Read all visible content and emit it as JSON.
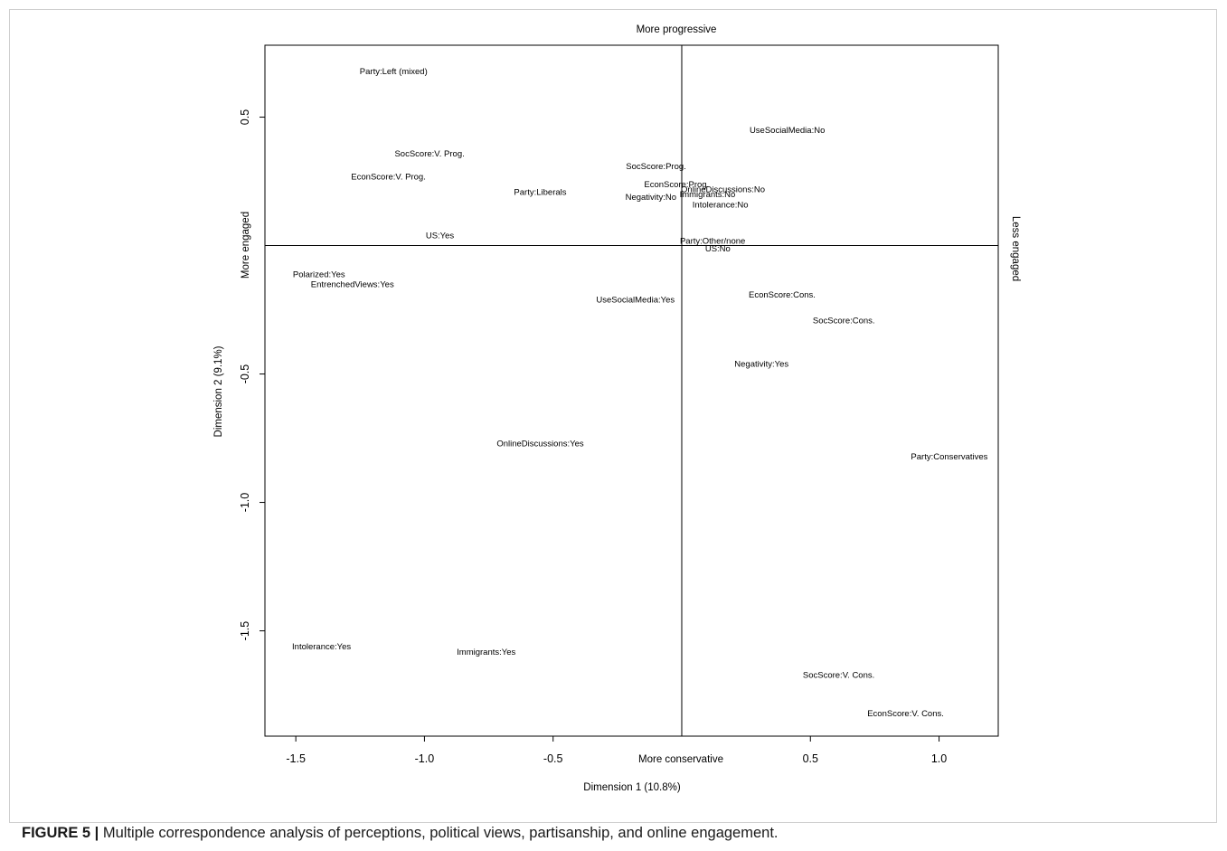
{
  "caption": {
    "label": "FIGURE 5 |",
    "text": "Multiple correspondence analysis of perceptions, political views, partisanship, and online engagement."
  },
  "chart_data": {
    "type": "scatter",
    "xlabel": "Dimension 1 (10.8%)",
    "ylabel": "Dimension 2 (9.1%)",
    "xlim": [
      -1.62,
      1.23
    ],
    "ylim": [
      -1.91,
      0.78
    ],
    "x_ticks": [
      {
        "value": -1.5,
        "label": "-1.5"
      },
      {
        "value": -1.0,
        "label": "-1.0"
      },
      {
        "value": -0.5,
        "label": "-0.5"
      },
      {
        "value": 0.5,
        "label": "0.5"
      },
      {
        "value": 1.0,
        "label": "1.0"
      }
    ],
    "y_ticks": [
      {
        "value": 0.5,
        "label": "0.5"
      },
      {
        "value": -0.5,
        "label": "-0.5"
      },
      {
        "value": -1.0,
        "label": "-1.0"
      },
      {
        "value": -1.5,
        "label": "-1.5"
      }
    ],
    "reference_lines": {
      "x": 0,
      "y": 0
    },
    "annotations": {
      "top": "More progressive",
      "bottom": "More conservative",
      "left": "More engaged",
      "right": "Less engaged"
    },
    "points": [
      {
        "label": "Party:Left (mixed)",
        "x": -1.12,
        "y": 0.68
      },
      {
        "label": "UseSocialMedia:No",
        "x": 0.41,
        "y": 0.45
      },
      {
        "label": "SocScore:V. Prog.",
        "x": -0.98,
        "y": 0.36
      },
      {
        "label": "SocScore:Prog.",
        "x": -0.1,
        "y": 0.31
      },
      {
        "label": "EconScore:V. Prog.",
        "x": -1.14,
        "y": 0.27
      },
      {
        "label": "EconScore:Prog.",
        "x": -0.02,
        "y": 0.24
      },
      {
        "label": "OnlineDiscussions:No",
        "x": 0.16,
        "y": 0.22
      },
      {
        "label": "Party:Liberals",
        "x": -0.55,
        "y": 0.21
      },
      {
        "label": "Immigrants:No",
        "x": 0.1,
        "y": 0.2
      },
      {
        "label": "Negativity:No",
        "x": -0.12,
        "y": 0.19
      },
      {
        "label": "Intolerance:No",
        "x": 0.15,
        "y": 0.16
      },
      {
        "label": "US:Yes",
        "x": -0.94,
        "y": 0.04
      },
      {
        "label": "Party:Other/none",
        "x": 0.12,
        "y": 0.02
      },
      {
        "label": "US:No",
        "x": 0.14,
        "y": -0.01
      },
      {
        "label": "Polarized:Yes",
        "x": -1.41,
        "y": -0.11
      },
      {
        "label": "EntrenchedViews:Yes",
        "x": -1.28,
        "y": -0.15
      },
      {
        "label": "UseSocialMedia:Yes",
        "x": -0.18,
        "y": -0.21
      },
      {
        "label": "EconScore:Cons.",
        "x": 0.39,
        "y": -0.19
      },
      {
        "label": "SocScore:Cons.",
        "x": 0.63,
        "y": -0.29
      },
      {
        "label": "Negativity:Yes",
        "x": 0.31,
        "y": -0.46
      },
      {
        "label": "OnlineDiscussions:Yes",
        "x": -0.55,
        "y": -0.77
      },
      {
        "label": "Party:Conservatives",
        "x": 1.04,
        "y": -0.82
      },
      {
        "label": "Intolerance:Yes",
        "x": -1.4,
        "y": -1.56
      },
      {
        "label": "Immigrants:Yes",
        "x": -0.76,
        "y": -1.58
      },
      {
        "label": "SocScore:V. Cons.",
        "x": 0.61,
        "y": -1.67
      },
      {
        "label": "EconScore:V. Cons.",
        "x": 0.87,
        "y": -1.82
      }
    ]
  }
}
